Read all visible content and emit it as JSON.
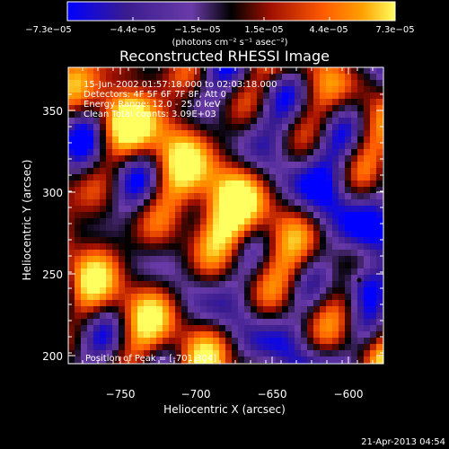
{
  "colorbar": {
    "tick_labels": [
      "−7.3e−05",
      "−4.4e−05",
      "−1.5e−05",
      "1.5e−05",
      "4.4e−05",
      "7.3e−05"
    ],
    "units": "(photons cm⁻² s⁻¹ asec⁻²)"
  },
  "plot": {
    "title": "Reconstructed RHESSI Image",
    "xlabel": "Heliocentric X (arcsec)",
    "ylabel": "Heliocentric Y (arcsec)",
    "x_ticks": [
      "−750",
      "−700",
      "−650",
      "−600"
    ],
    "y_ticks": [
      "350",
      "300",
      "250",
      "200"
    ],
    "info_lines": [
      "15-Jun-2002 01:57:18.000 to 02:03:18.000",
      "Detectors: 4F 5F 6F 7F 8F, Att 0",
      "Energy Range: 12.0 - 25.0 keV",
      "Clean    Total counts: 3.09E+03"
    ],
    "peak_label": "Position of Peak = [-701,304]"
  },
  "footer": {
    "timestamp": "21-Apr-2013 04:54"
  },
  "colors": {
    "background": "#000000",
    "colormap": [
      "#0000ff",
      "#3a1c8f",
      "#6a3ba8",
      "#000000",
      "#a01000",
      "#ff5a00",
      "#ffa000",
      "#ffff60"
    ]
  }
}
